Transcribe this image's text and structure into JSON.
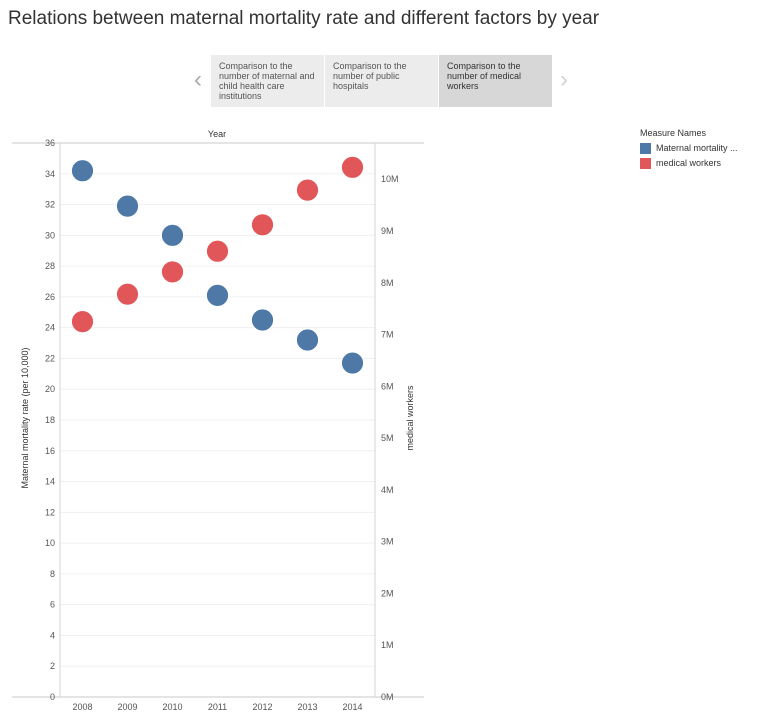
{
  "page": {
    "title": "Relations between maternal mortality rate and different factors by year"
  },
  "story": {
    "prev_icon": "chevron-left-icon",
    "next_icon": "chevron-right-icon",
    "points": [
      {
        "label": "Comparison to the number of maternal and child health care institutions",
        "active": false
      },
      {
        "label": "Comparison to the number of public hospitals",
        "active": false
      },
      {
        "label": "Comparison to the number of medical workers",
        "active": true
      }
    ]
  },
  "legend": {
    "title": "Measure Names",
    "items": [
      {
        "label": "Maternal mortality ...",
        "color": "#4e79a7"
      },
      {
        "label": "medical workers",
        "color": "#e15759"
      }
    ]
  },
  "chart_data": {
    "type": "scatter",
    "title": "Year",
    "categories": [
      "2008",
      "2009",
      "2010",
      "2011",
      "2012",
      "2013",
      "2014"
    ],
    "left_axis": {
      "label": "Maternal mortality rate (per 10,000)",
      "range": [
        0,
        36
      ],
      "ticks": [
        {
          "value": 0,
          "label": "0"
        },
        {
          "value": 2,
          "label": "2"
        },
        {
          "value": 4,
          "label": "4"
        },
        {
          "value": 6,
          "label": "6"
        },
        {
          "value": 8,
          "label": "8"
        },
        {
          "value": 10,
          "label": "10"
        },
        {
          "value": 12,
          "label": "12"
        },
        {
          "value": 14,
          "label": "14"
        },
        {
          "value": 16,
          "label": "16"
        },
        {
          "value": 18,
          "label": "18"
        },
        {
          "value": 20,
          "label": "20"
        },
        {
          "value": 22,
          "label": "22"
        },
        {
          "value": 24,
          "label": "24"
        },
        {
          "value": 26,
          "label": "26"
        },
        {
          "value": 28,
          "label": "28"
        },
        {
          "value": 30,
          "label": "30"
        },
        {
          "value": 32,
          "label": "32"
        },
        {
          "value": 34,
          "label": "34"
        },
        {
          "value": 36,
          "label": "36"
        }
      ]
    },
    "right_axis": {
      "label": "medical workers",
      "range": [
        0,
        10700000
      ],
      "ticks": [
        {
          "value": 0,
          "label": "0M"
        },
        {
          "value": 1000000,
          "label": "1M"
        },
        {
          "value": 2000000,
          "label": "2M"
        },
        {
          "value": 3000000,
          "label": "3M"
        },
        {
          "value": 4000000,
          "label": "4M"
        },
        {
          "value": 5000000,
          "label": "5M"
        },
        {
          "value": 6000000,
          "label": "6M"
        },
        {
          "value": 7000000,
          "label": "7M"
        },
        {
          "value": 8000000,
          "label": "8M"
        },
        {
          "value": 9000000,
          "label": "9M"
        },
        {
          "value": 10000000,
          "label": "10M"
        }
      ]
    },
    "series": [
      {
        "name": "Maternal mortality rate (per 10,000)",
        "axis": "left",
        "color": "#4e79a7",
        "values": [
          34.2,
          31.9,
          30.0,
          26.1,
          24.5,
          23.2,
          21.7
        ]
      },
      {
        "name": "medical workers",
        "axis": "right",
        "color": "#e15759",
        "values": [
          7250000,
          7780000,
          8210000,
          8610000,
          9120000,
          9790000,
          10230000
        ]
      }
    ],
    "grid": true
  }
}
